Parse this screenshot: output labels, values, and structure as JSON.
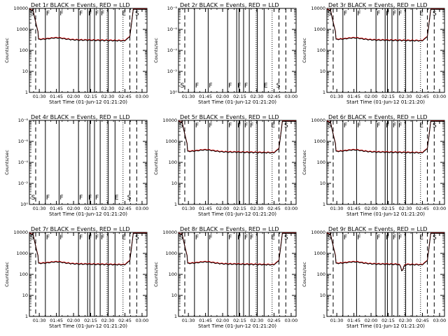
{
  "figure": {
    "x_axis_label": "Start Time (01-Jun-12 01:21:20)",
    "y_axis_label": "Counts/sec",
    "x_tick_labels": [
      "01:30",
      "01:45",
      "02:00",
      "02:15",
      "02:30",
      "02:45",
      "03:00"
    ],
    "series_colors": {
      "events": "#000000",
      "lld": "#ff0000"
    }
  },
  "chart_data": [
    {
      "type": "line",
      "title": "Det 1r BLACK = Events, RED = LLD",
      "scale": "normal",
      "xlabel": "Start Time (01-Jun-12 01:21:20)",
      "ylabel": "Counts/sec",
      "y_tick_labels": [
        "1",
        "10",
        "100",
        "1000",
        "10000"
      ],
      "flags": [
        "S",
        "F",
        "F",
        "F",
        "F",
        "F",
        "F",
        "E",
        "S"
      ],
      "dip": false
    },
    {
      "type": "line",
      "title": "Det 2r BLACK = Events, RED = LLD",
      "scale": "empty",
      "xlabel": "Start Time (01-Jun-12 01:21:20)",
      "ylabel": "Counts/sec",
      "y_tick_labels": [
        "10⁰",
        "10⁻²",
        "10⁻⁴",
        "10⁻⁶",
        "10⁻⁸"
      ],
      "flags": [
        "S",
        "F",
        "F",
        "F",
        "F",
        "F",
        "E",
        "S"
      ],
      "dip": false
    },
    {
      "type": "line",
      "title": "Det 3r BLACK = Events, RED = LLD",
      "scale": "normal",
      "xlabel": "Start Time (01-Jun-12 01:21:20)",
      "ylabel": "Counts/sec",
      "y_tick_labels": [
        "1",
        "10",
        "100",
        "1000",
        "10000"
      ],
      "flags": [
        "S",
        "F",
        "F",
        "F",
        "F",
        "F",
        "F",
        "E",
        "S"
      ],
      "dip": false
    },
    {
      "type": "line",
      "title": "Det 4r BLACK = Events, RED = LLD",
      "scale": "empty",
      "xlabel": "Start Time (01-Jun-12 01:21:20)",
      "ylabel": "Counts/sec",
      "y_tick_labels": [
        "10⁰",
        "10⁻²",
        "10⁻⁴",
        "10⁻⁶",
        "10⁻⁸"
      ],
      "flags": [
        "S",
        "F",
        "F",
        "F",
        "F",
        "F",
        "E",
        "S"
      ],
      "dip": false
    },
    {
      "type": "line",
      "title": "Det 5r BLACK = Events, RED = LLD",
      "scale": "normal",
      "xlabel": "Start Time (01-Jun-12 01:21:20)",
      "ylabel": "Counts/sec",
      "y_tick_labels": [
        "1",
        "10",
        "100",
        "1000",
        "10000"
      ],
      "flags": [
        "S",
        "F",
        "F",
        "F",
        "F",
        "F",
        "F",
        "E",
        "S"
      ],
      "dip": false
    },
    {
      "type": "line",
      "title": "Det 6r BLACK = Events, RED = LLD",
      "scale": "normal",
      "xlabel": "Start Time (01-Jun-12 01:21:20)",
      "ylabel": "Counts/sec",
      "y_tick_labels": [
        "1",
        "10",
        "100",
        "1000",
        "10000"
      ],
      "flags": [
        "S",
        "F",
        "F",
        "F",
        "F",
        "F",
        "F",
        "E",
        "S"
      ],
      "dip": false
    },
    {
      "type": "line",
      "title": "Det 7r BLACK = Events, RED = LLD",
      "scale": "normal",
      "xlabel": "Start Time (01-Jun-12 01:21:20)",
      "ylabel": "Counts/sec",
      "y_tick_labels": [
        "1",
        "10",
        "100",
        "1000",
        "10000"
      ],
      "flags": [
        "S",
        "F",
        "F",
        "F",
        "F",
        "F",
        "F",
        "E",
        "S"
      ],
      "dip": false
    },
    {
      "type": "line",
      "title": "Det 8r BLACK = Events, RED = LLD",
      "scale": "normal",
      "xlabel": "Start Time (01-Jun-12 01:21:20)",
      "ylabel": "Counts/sec",
      "y_tick_labels": [
        "1",
        "10",
        "100",
        "1000",
        "10000"
      ],
      "flags": [
        "S",
        "F",
        "F",
        "F",
        "F",
        "F",
        "F",
        "E",
        "S"
      ],
      "dip": false
    },
    {
      "type": "line",
      "title": "Det 9r BLACK = Events, RED = LLD",
      "scale": "normal",
      "xlabel": "Start Time (01-Jun-12 01:21:20)",
      "ylabel": "Counts/sec",
      "y_tick_labels": [
        "1",
        "10",
        "100",
        "1000",
        "10000"
      ],
      "flags": [
        "S",
        "F",
        "F",
        "F",
        "F",
        "F",
        "F",
        "E",
        "S"
      ],
      "dip": true
    }
  ]
}
